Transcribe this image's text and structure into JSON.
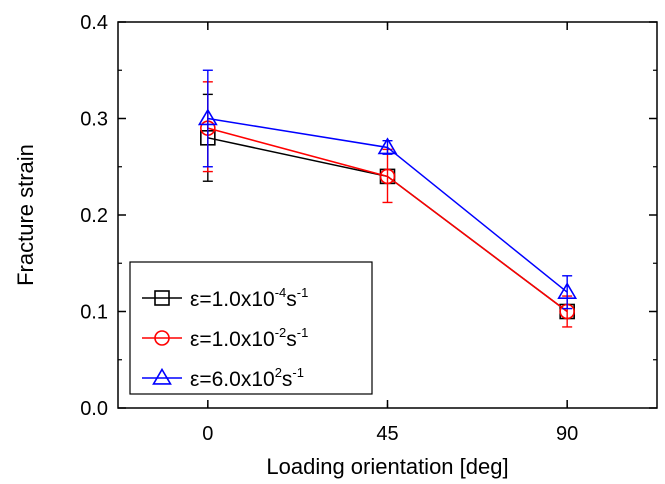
{
  "chart_data": {
    "type": "line",
    "title": "",
    "xlabel": "Loading orientation [deg]",
    "ylabel": "Fracture strain",
    "x": [
      0,
      45,
      90
    ],
    "x_tick_labels": [
      "0",
      "45",
      "90"
    ],
    "xlim": [
      -22.5,
      112.5
    ],
    "ylim": [
      0.0,
      0.4
    ],
    "y_tick_labels": [
      "0.0",
      "0.1",
      "0.2",
      "0.3",
      "0.4"
    ],
    "y_ticks": [
      0.0,
      0.1,
      0.2,
      0.3,
      0.4
    ],
    "grid": false,
    "legend_position": "bottom-left",
    "series": [
      {
        "name": "ε=1.0x10-4s-1",
        "label_base": "ε=1.0x10",
        "label_exp1": "-4",
        "label_mid": "s",
        "label_exp2": "-1",
        "color": "#000000",
        "marker": "square",
        "values": [
          0.28,
          0.24,
          0.1
        ],
        "error_low": [
          0.235,
          0.24,
          0.1
        ],
        "error_high": [
          0.325,
          0.24,
          0.1
        ]
      },
      {
        "name": "ε=1.0x10-2s-1",
        "label_base": "ε=1.0x10",
        "label_exp1": "-2",
        "label_mid": "s",
        "label_exp2": "-1",
        "color": "#ff0000",
        "marker": "circle",
        "values": [
          0.29,
          0.24,
          0.1
        ],
        "error_low": [
          0.245,
          0.213,
          0.084
        ],
        "error_high": [
          0.338,
          0.268,
          0.116
        ]
      },
      {
        "name": "ε=6.0x102s-1",
        "label_base": "ε=6.0x10",
        "label_exp1": "2",
        "label_mid": "s",
        "label_exp2": "-1",
        "color": "#0000ff",
        "marker": "triangle",
        "values": [
          0.3,
          0.27,
          0.12
        ],
        "error_low": [
          0.25,
          0.263,
          0.103
        ],
        "error_high": [
          0.35,
          0.277,
          0.137
        ]
      }
    ]
  }
}
